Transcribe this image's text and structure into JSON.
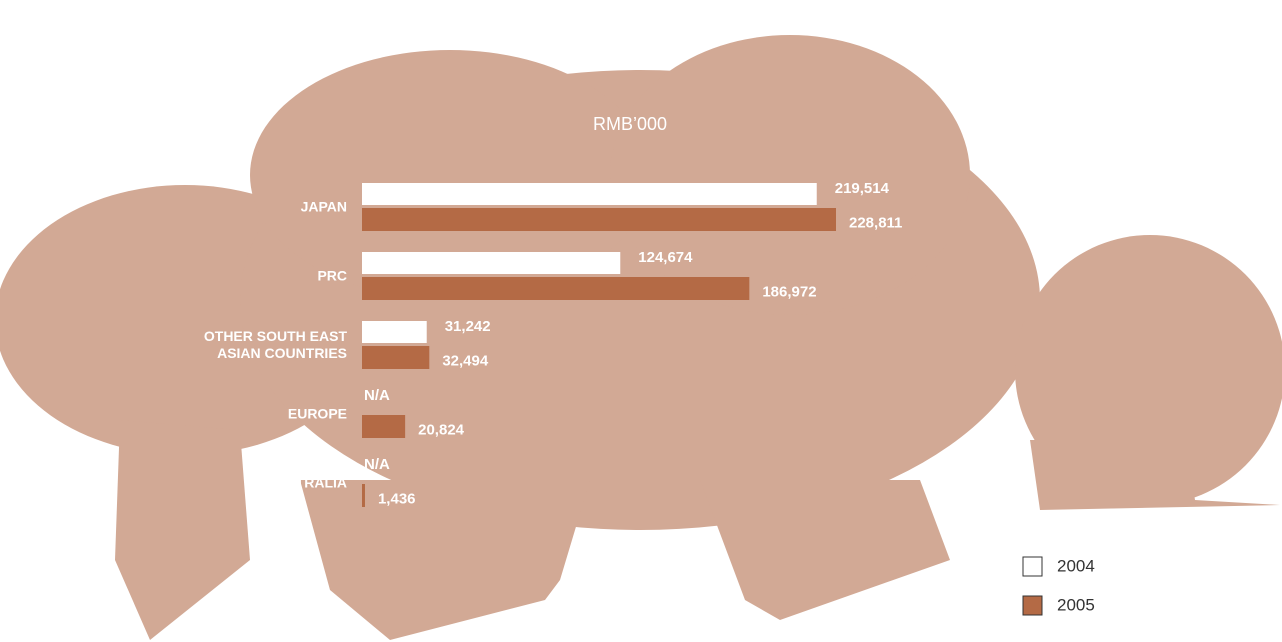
{
  "chart_data": {
    "type": "bar",
    "orientation": "horizontal",
    "title": "RMB’000",
    "categories": [
      "JAPAN",
      "PRC",
      "OTHER SOUTH EAST\nASIAN COUNTRIES",
      "EUROPE",
      "AUSTRALIA"
    ],
    "series": [
      {
        "name": "2004",
        "color": "#ffffff",
        "values": [
          219514,
          124674,
          31242,
          null,
          null
        ],
        "value_labels": [
          "219,514",
          "124,674",
          "31,242",
          "N/A",
          "N/A"
        ]
      },
      {
        "name": "2005",
        "color": "#b46a45",
        "values": [
          228811,
          186972,
          32494,
          20824,
          1436
        ],
        "value_labels": [
          "228,811",
          "186,972",
          "32,494",
          "20,824",
          "1,436"
        ]
      }
    ]
  }
}
